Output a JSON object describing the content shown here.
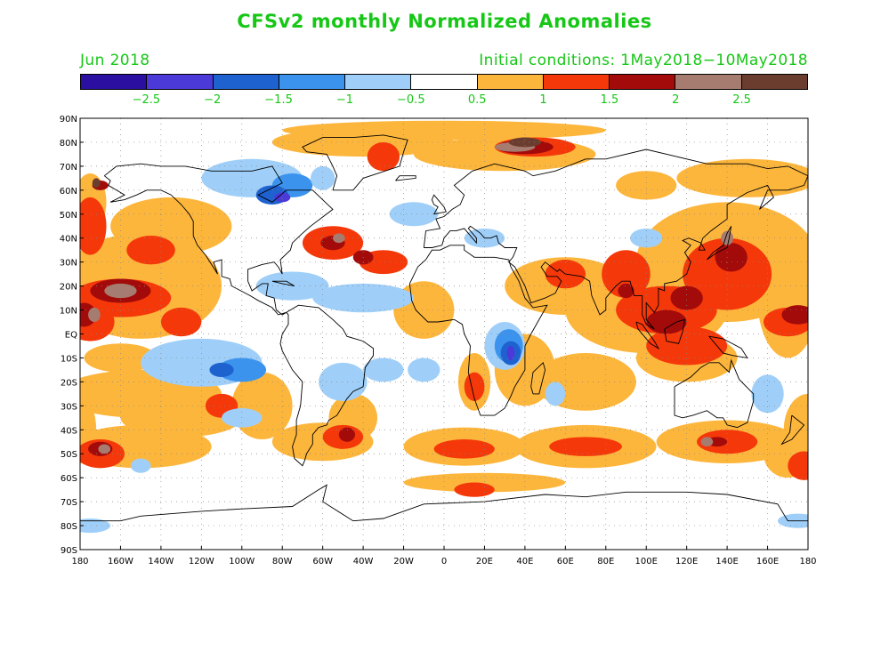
{
  "title": "CFSv2 monthly Normalized Anomalies",
  "valid_month": "Jun 2018",
  "initial_conditions": "Initial conditions: 1May2018−10May2018",
  "colorbar": {
    "colors": [
      "#2a0fa0",
      "#4b3ad8",
      "#1e62d0",
      "#3b93ee",
      "#9fcff8",
      "#ffffff",
      "#fdb63c",
      "#f5380a",
      "#a30a0a",
      "#a67c70",
      "#6b3d2e"
    ],
    "labels": [
      "−2.5",
      "−2",
      "−1.5",
      "−1",
      "−0.5",
      "0.5",
      "1",
      "1.5",
      "2",
      "2.5"
    ]
  },
  "latitude_labels": [
    "90N",
    "80N",
    "70N",
    "60N",
    "50N",
    "40N",
    "30N",
    "20N",
    "10N",
    "EQ",
    "10S",
    "20S",
    "30S",
    "40S",
    "50S",
    "60S",
    "70S",
    "80S",
    "90S"
  ],
  "longitude_labels": [
    "180",
    "160W",
    "140W",
    "120W",
    "100W",
    "80W",
    "60W",
    "40W",
    "20W",
    "0",
    "20E",
    "40E",
    "60E",
    "80E",
    "100E",
    "120E",
    "140E",
    "160E",
    "180"
  ],
  "map": {
    "projection": "equirectangular",
    "lon_range": [
      -180,
      180
    ],
    "lat_range": [
      -90,
      90
    ],
    "gridlines": "dotted"
  }
}
